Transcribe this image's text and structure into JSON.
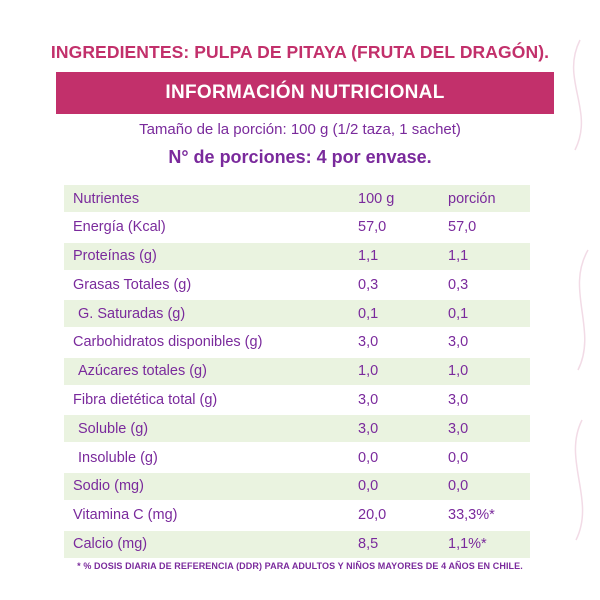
{
  "ingredients": "INGREDIENTES:  PULPA DE PITAYA (FRUTA DEL DRAGÓN).",
  "banner": "INFORMACIÓN NUTRICIONAL",
  "serving_size": "Tamaño de la porción:  100 g (1/2 taza, 1 sachet)",
  "portions": "N° de porciones: 4 por envase.",
  "table": {
    "headers": {
      "nutrient": "Nutrientes",
      "per100": "100 g",
      "portion": "porción"
    },
    "rows": [
      {
        "name": "Energía (Kcal)",
        "per100": "57,0",
        "portion": "57,0"
      },
      {
        "name": "Proteínas (g)",
        "per100": "1,1",
        "portion": "1,1"
      },
      {
        "name": "Grasas Totales (g)",
        "per100": "0,3",
        "portion": "0,3"
      },
      {
        "name": "G. Saturadas (g)",
        "per100": "0,1",
        "portion": "0,1"
      },
      {
        "name": "Carbohidratos disponibles (g)",
        "per100": "3,0",
        "portion": "3,0"
      },
      {
        "name": "Azúcares totales (g)",
        "per100": "1,0",
        "portion": "1,0"
      },
      {
        "name": "Fibra dietética total (g)",
        "per100": "3,0",
        "portion": "3,0"
      },
      {
        "name": "Soluble (g)",
        "per100": "3,0",
        "portion": "3,0"
      },
      {
        "name": "Insoluble (g)",
        "per100": "0,0",
        "portion": "0,0"
      },
      {
        "name": "Sodio (mg)",
        "per100": "0,0",
        "portion": "0,0"
      },
      {
        "name": "Vitamina C (mg)",
        "per100": "20,0",
        "portion": "33,3%*"
      },
      {
        "name": "Calcio (mg)",
        "per100": "8,5",
        "portion": "1,1%*"
      }
    ]
  },
  "footnote": "* % DOSIS DIARIA DE REFERENCIA (DDR) PARA ADULTOS Y NIÑOS MAYORES DE 4 AÑOS EN CHILE.",
  "colors": {
    "accent": "#c2306b",
    "text": "#7a2a9c",
    "row_shade": "#eaf3e0"
  }
}
